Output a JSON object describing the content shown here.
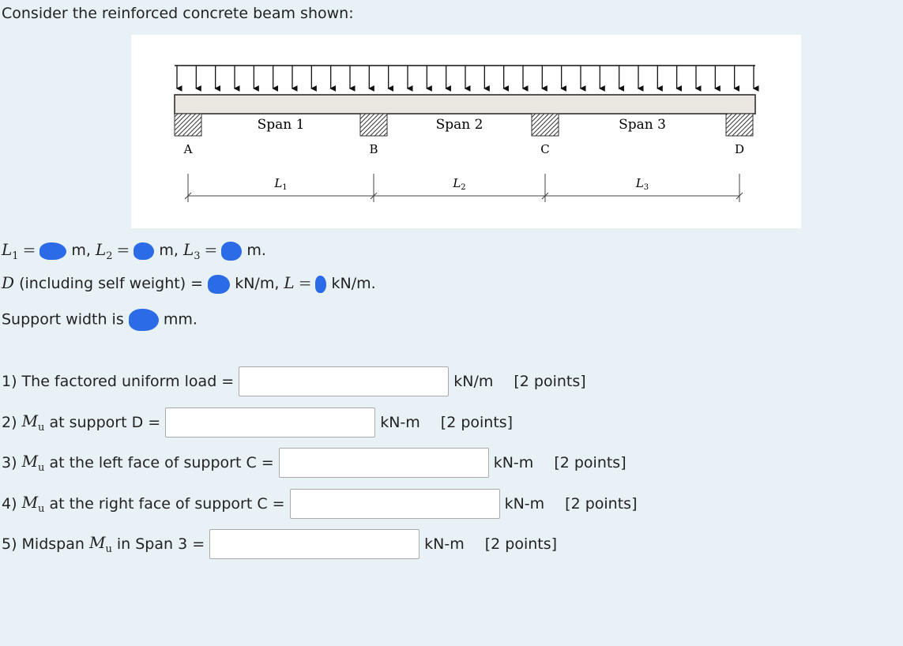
{
  "intro": "Consider the reinforced concrete beam shown:",
  "figure": {
    "spans": [
      "Span 1",
      "Span 2",
      "Span 3"
    ],
    "supports": [
      "A",
      "B",
      "C",
      "D"
    ],
    "lengths": [
      "L",
      "L",
      "L"
    ],
    "length_subs": [
      "1",
      "2",
      "3"
    ]
  },
  "given": {
    "l1": "L",
    "l1_sub": "1",
    "l2": "L",
    "l2_sub": "2",
    "l3": "L",
    "l3_sub": "3",
    "eq": "=",
    "unit_m_comma": "m,",
    "unit_m": "m.",
    "dead_sym": "D",
    "dead_text": "(including self weight) =",
    "dead_unit": "kN/m,",
    "live_sym": "L",
    "live_unit": "kN/m.",
    "support_text": "Support width is",
    "support_unit": "mm."
  },
  "questions": [
    {
      "pre": "1) The factored uniform load =",
      "sym": "",
      "sym_sub": "",
      "post": "",
      "unit": "kN/m",
      "points": "[2 points]",
      "value": ""
    },
    {
      "pre": "2)",
      "sym": "M",
      "sym_sub": "u",
      "post": "at support D =",
      "unit": "kN-m",
      "points": "[2 points]",
      "value": ""
    },
    {
      "pre": "3)",
      "sym": "M",
      "sym_sub": "u",
      "post": "at the left face of support C =",
      "unit": "kN-m",
      "points": "[2 points]",
      "value": ""
    },
    {
      "pre": "4)",
      "sym": "M",
      "sym_sub": "u",
      "post": "at the right face of support C =",
      "unit": "kN-m",
      "points": "[2 points]",
      "value": ""
    },
    {
      "pre": "5) Midspan",
      "sym": "M",
      "sym_sub": "u",
      "post": "in Span 3 =",
      "unit": "kN-m",
      "points": "[2 points]",
      "value": ""
    }
  ],
  "colors": {
    "redaction": "#2b6be8",
    "background": "#e8f1f5",
    "beam": "#e9e7df"
  }
}
